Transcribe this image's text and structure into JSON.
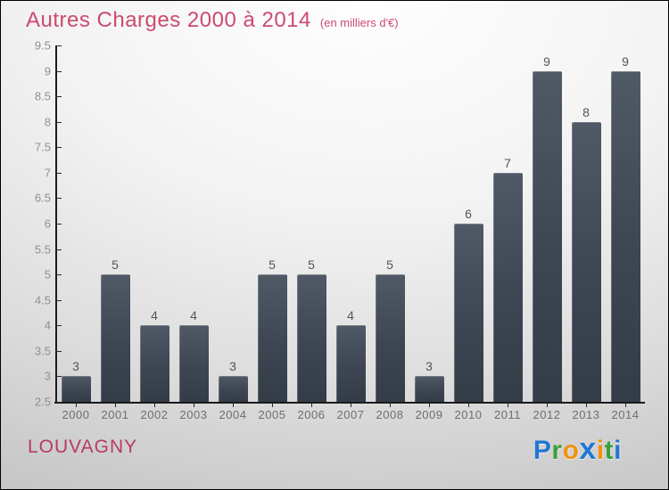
{
  "title": "Autres Charges 2000 à 2014",
  "subtitle": "(en milliers d'€)",
  "colors": {
    "title": "#cc4a70",
    "subtitle": "#cc4a70",
    "bar_top": "#505a66",
    "bar_bottom": "#333c47",
    "axis": "#1b1b1b",
    "ytick_label": "#8f8f8f",
    "year_label": "#6e6e6e",
    "value_label": "#555555",
    "footer_place": "#b83a62"
  },
  "footer": {
    "place": "LOUVAGNY",
    "logo": {
      "name": "Proxiti",
      "letters": [
        {
          "ch": "P",
          "color": "#2277d3"
        },
        {
          "ch": "r",
          "color": "#3aa03a"
        },
        {
          "ch": "o",
          "color": "#f29111"
        },
        {
          "ch": "x",
          "color": "#2277d3"
        },
        {
          "ch": "i",
          "color": "#f29111"
        },
        {
          "ch": "t",
          "color": "#3aa03a"
        },
        {
          "ch": "i",
          "color": "#2277d3"
        }
      ]
    }
  },
  "chart_data": {
    "type": "bar",
    "title": "Autres Charges 2000 à 2014",
    "subtitle": "(en milliers d'€)",
    "categories": [
      "2000",
      "2001",
      "2002",
      "2003",
      "2004",
      "2005",
      "2006",
      "2007",
      "2008",
      "2009",
      "2010",
      "2011",
      "2012",
      "2013",
      "2014"
    ],
    "values": [
      3,
      5,
      4,
      4,
      3,
      5,
      5,
      4,
      5,
      3,
      6,
      7,
      9,
      8,
      9
    ],
    "xlabel": "",
    "ylabel": "",
    "ylim": [
      2.5,
      9.5
    ],
    "ytick_step": 0.5,
    "grid": false,
    "legend": "none",
    "value_labels": true
  }
}
